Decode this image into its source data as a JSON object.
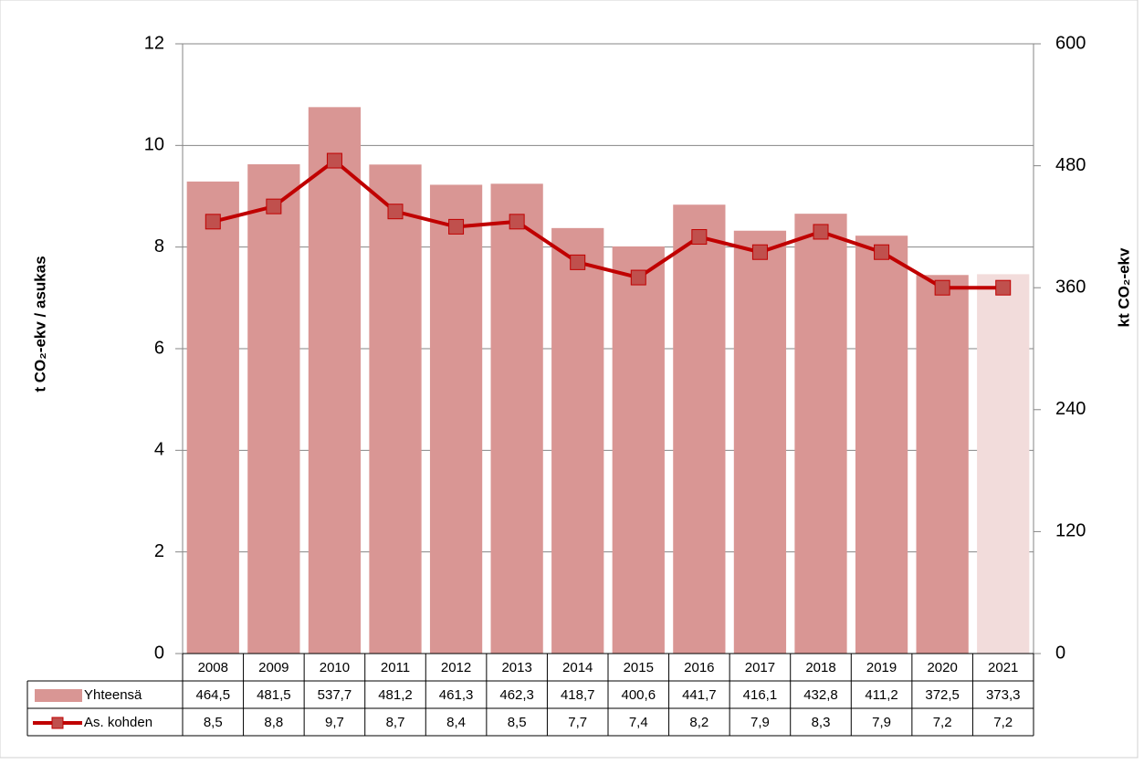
{
  "chart_data": {
    "type": "bar_line",
    "ylabel": "t CO₂-ekv / asukas",
    "y2label": "kt CO₂-ekv",
    "categories": [
      "2008",
      "2009",
      "2010",
      "2011",
      "2012",
      "2013",
      "2014",
      "2015",
      "2016",
      "2017",
      "2018",
      "2019",
      "2020",
      "2021"
    ],
    "ylim": [
      0,
      12
    ],
    "yticks": [
      0,
      2,
      4,
      6,
      8,
      10,
      12
    ],
    "y2lim": [
      0,
      600
    ],
    "y2ticks": [
      0,
      120,
      240,
      360,
      480,
      600
    ],
    "grid": true,
    "series": [
      {
        "name": "Yhteensä",
        "type": "bar",
        "axis": "y2",
        "color": "#d99694",
        "colors": [
          "#d99694",
          "#d99694",
          "#d99694",
          "#d99694",
          "#d99694",
          "#d99694",
          "#d99694",
          "#d99694",
          "#d99694",
          "#d99694",
          "#d99694",
          "#d99694",
          "#d99694",
          "#f2dcdb"
        ],
        "values": [
          464.5,
          481.5,
          537.7,
          481.2,
          461.3,
          462.3,
          418.7,
          400.6,
          441.7,
          416.1,
          432.8,
          411.2,
          372.5,
          373.3
        ],
        "value_labels": [
          "464,5",
          "481,5",
          "537,7",
          "481,2",
          "461,3",
          "462,3",
          "418,7",
          "400,6",
          "441,7",
          "416,1",
          "432,8",
          "411,2",
          "372,5",
          "373,3"
        ]
      },
      {
        "name": "As. kohden",
        "type": "line",
        "axis": "y",
        "color": "#c00000",
        "marker_color": "#c0504d",
        "values": [
          8.5,
          8.8,
          9.7,
          8.7,
          8.4,
          8.5,
          7.7,
          7.4,
          8.2,
          7.9,
          8.3,
          7.9,
          7.2,
          7.2
        ],
        "value_labels": [
          "8,5",
          "8,8",
          "9,7",
          "8,7",
          "8,4",
          "8,5",
          "7,7",
          "7,4",
          "8,2",
          "7,9",
          "8,3",
          "7,9",
          "7,2",
          "7,2"
        ]
      }
    ]
  }
}
